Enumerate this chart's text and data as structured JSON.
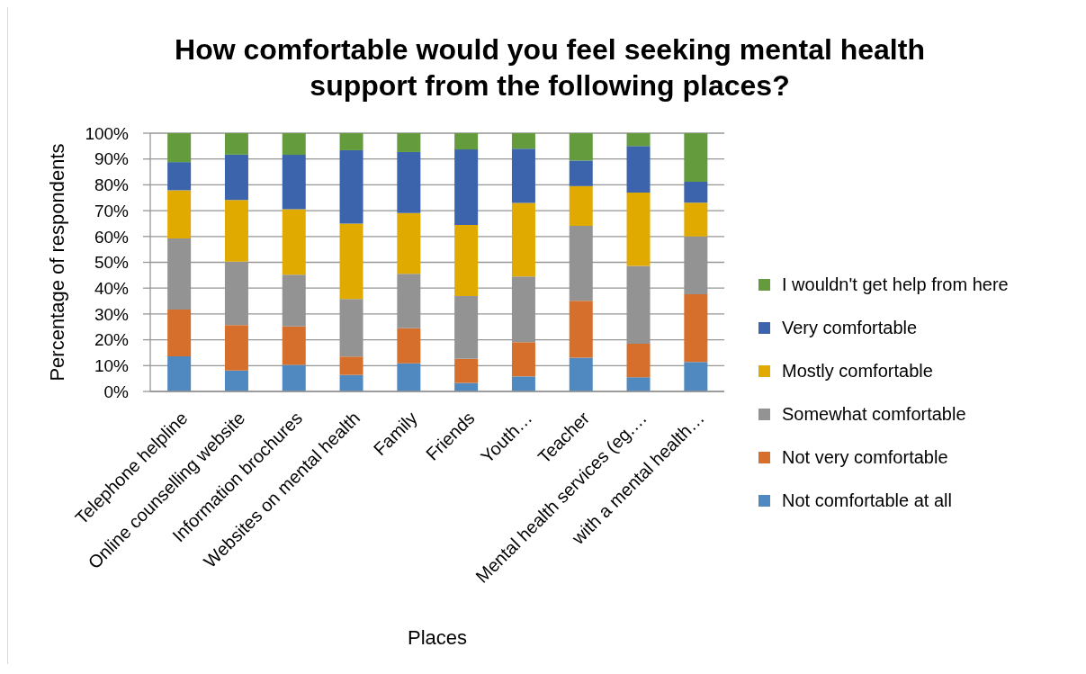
{
  "chart_data": {
    "type": "bar",
    "title": "How comfortable would you feel seeking mental health support from the following places?",
    "xlabel": "Places",
    "ylabel": "Percentage of respondents",
    "categories": [
      "Telephone helpline",
      "Online counselling website",
      "Information brochures",
      "Websites on mental health",
      "Family",
      "Friends",
      "Youth…",
      "Teacher",
      "Mental health services (eg.…",
      "with a mental health…"
    ],
    "series": [
      {
        "name": "Not comfortable at all",
        "color": "#4f89c0",
        "values": [
          13.6,
          8.1,
          10.3,
          6.4,
          10.9,
          3.3,
          5.8,
          13.1,
          5.5,
          11.4
        ]
      },
      {
        "name": "Not very comfortable",
        "color": "#d56f2b",
        "values": [
          18.1,
          17.6,
          14.9,
          7.1,
          13.6,
          9.3,
          13.3,
          22.0,
          13.0,
          26.2
        ]
      },
      {
        "name": "Somewhat comfortable",
        "color": "#939393",
        "values": [
          27.5,
          24.6,
          20.0,
          22.3,
          21.1,
          24.3,
          25.4,
          29.0,
          30.1,
          22.4
        ]
      },
      {
        "name": "Mostly comfortable",
        "color": "#e1aa00",
        "values": [
          18.7,
          23.8,
          25.4,
          29.2,
          23.5,
          27.6,
          28.5,
          15.4,
          28.4,
          13.1
        ]
      },
      {
        "name": "Very comfortable",
        "color": "#3c64ad",
        "values": [
          10.9,
          17.6,
          21.0,
          28.4,
          23.6,
          29.2,
          21.0,
          9.9,
          18.0,
          8.1
        ]
      },
      {
        "name": "I wouldn't get help from here",
        "color": "#639b3d",
        "values": [
          11.2,
          8.3,
          8.4,
          6.6,
          7.3,
          6.3,
          6.0,
          10.6,
          5.0,
          18.8
        ]
      }
    ],
    "stacked": true,
    "ylim": [
      0,
      100
    ],
    "yticks": [
      {
        "value": 0,
        "label": "0%"
      },
      {
        "value": 10,
        "label": "10%"
      },
      {
        "value": 20,
        "label": "20%"
      },
      {
        "value": 30,
        "label": "30%"
      },
      {
        "value": 40,
        "label": "40%"
      },
      {
        "value": 50,
        "label": "50%"
      },
      {
        "value": 60,
        "label": "60%"
      },
      {
        "value": 70,
        "label": "70%"
      },
      {
        "value": 80,
        "label": "80%"
      },
      {
        "value": 90,
        "label": "90%"
      },
      {
        "value": 100,
        "label": "100%"
      }
    ],
    "grid": "y",
    "legend": "right"
  }
}
